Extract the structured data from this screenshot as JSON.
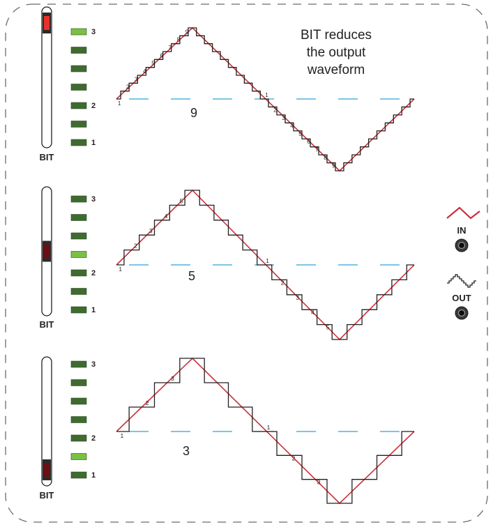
{
  "caption": {
    "line1": "BIT reduces",
    "line2": "the output",
    "line3": "waveform"
  },
  "panels": [
    {
      "name": "panel-9",
      "bit_label": "BIT",
      "level": 9,
      "level_label": "9",
      "led_labels": [
        "3",
        "2",
        "1"
      ],
      "led_active": 0,
      "slider_value": 1.0,
      "step_labels_up": [
        "1",
        "2",
        "3",
        "4",
        "5",
        "6",
        "7",
        "8",
        "9"
      ],
      "step_labels_down": [
        "1",
        "2",
        "3",
        "4",
        "5",
        "6",
        "7",
        "8",
        "9"
      ]
    },
    {
      "name": "panel-5",
      "bit_label": "BIT",
      "level": 5,
      "level_label": "5",
      "led_labels": [
        "3",
        "2",
        "1"
      ],
      "led_active": 3,
      "slider_value": 0.5,
      "step_labels_up": [
        "1",
        "2",
        "3",
        "4",
        "5"
      ],
      "step_labels_down": [
        "1",
        "2",
        "3",
        "4",
        "5"
      ]
    },
    {
      "name": "panel-3",
      "bit_label": "BIT",
      "level": 3,
      "level_label": "3",
      "led_labels": [
        "3",
        "2",
        "1"
      ],
      "led_active": 5,
      "slider_value": 0.0,
      "step_labels_up": [
        "1",
        "2",
        "3"
      ],
      "step_labels_down": [
        "1",
        "2",
        "3"
      ]
    }
  ],
  "jacks": {
    "in_label": "IN",
    "out_label": "OUT",
    "in_icon": "triangle-wave-icon",
    "out_icon": "stepped-wave-icon"
  },
  "colors": {
    "wave_in": "#c8323c",
    "wave_out": "#231f20",
    "zero_line": "#2aa5d8",
    "led_on": "#7ac143",
    "led_off": "#3f6b30",
    "slider_knob_top": "#e8312a",
    "slider_knob_dim": "#6a1014",
    "border": "#6b6b6b"
  }
}
